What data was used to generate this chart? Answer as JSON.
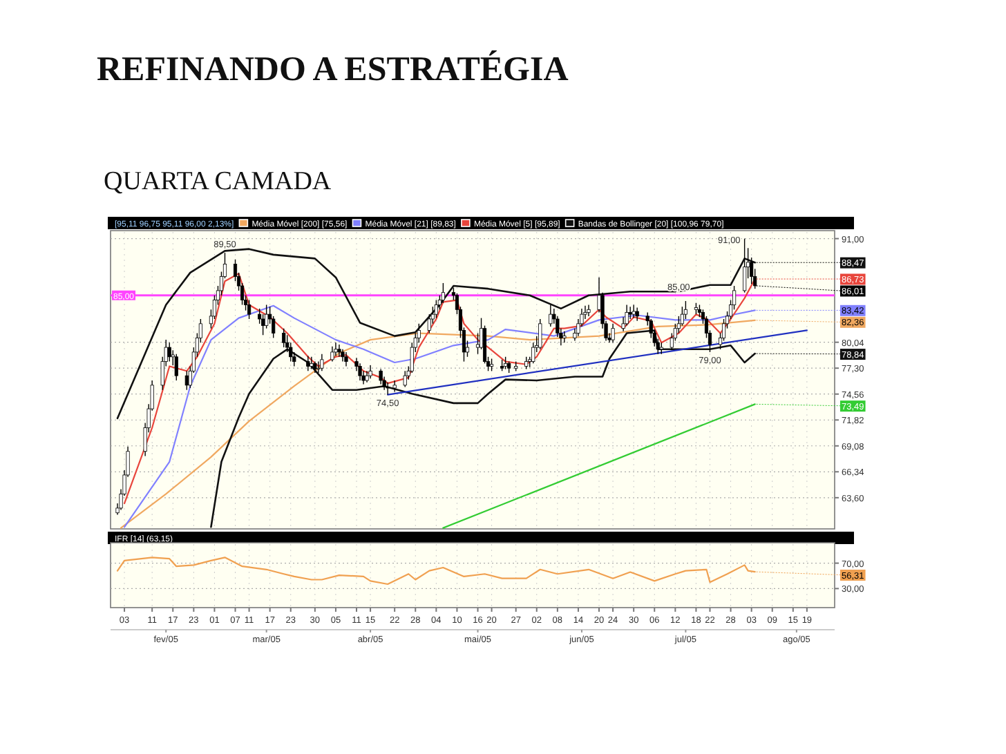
{
  "chart_data": [
    {
      "type": "candlestick",
      "title": "REFINANDO A ESTRATÉGIA",
      "subtitle": "QUARTA CAMADA",
      "x": [
        "--02-01",
        "--02-02",
        "--02-03",
        "--02-04",
        "--02-09",
        "--02-10",
        "--02-11",
        "--02-14",
        "--02-15",
        "--02-16",
        "--02-17",
        "--02-18",
        "--02-21",
        "--02-22",
        "--02-23",
        "--02-24",
        "--02-25",
        "--02-28",
        "--03-01",
        "--03-02",
        "--03-03",
        "--03-04",
        "--03-07",
        "--03-08",
        "--03-09",
        "--03-10",
        "--03-11",
        "--03-14",
        "--03-15",
        "--03-16",
        "--03-17",
        "--03-18",
        "--03-21",
        "--03-22",
        "--03-23",
        "--03-24",
        "--03-28",
        "--03-29",
        "--03-30",
        "--03-31",
        "--04-01",
        "--04-04",
        "--04-05",
        "--04-06",
        "--04-07",
        "--04-08",
        "--04-11",
        "--04-12",
        "--04-13",
        "--04-14",
        "--04-15",
        "--04-18",
        "--04-19",
        "--04-20",
        "--04-22",
        "--04-25",
        "--04-26",
        "--04-27",
        "--04-28",
        "--04-29",
        "--05-02",
        "--05-03",
        "--05-04",
        "--05-05",
        "--05-06",
        "--05-09",
        "--05-10",
        "--05-11",
        "--05-12",
        "--05-13",
        "--05-16",
        "--05-17",
        "--05-18",
        "--05-19",
        "--05-20",
        "--05-23",
        "--05-24",
        "--05-25",
        "--05-27",
        "--05-30",
        "--05-31",
        "--06-01",
        "--06-02",
        "--06-03",
        "--06-06",
        "--06-07",
        "--06-08",
        "--06-09",
        "--06-10",
        "--06-13",
        "--06-14",
        "--06-15",
        "--06-16",
        "--06-17",
        "--06-20",
        "--06-21",
        "--06-22",
        "--06-23",
        "--06-24",
        "--06-27",
        "--06-28",
        "--06-29",
        "--06-30",
        "--07-01",
        "--07-04",
        "--07-05",
        "--07-06",
        "--07-07",
        "--07-08",
        "--07-11",
        "--07-12",
        "--07-13",
        "--07-14",
        "--07-15",
        "--07-18",
        "--07-19",
        "--07-20",
        "--07-21",
        "--07-22",
        "--07-25",
        "--07-26",
        "--07-27",
        "--07-28",
        "--07-29",
        "--08-01",
        "--08-02",
        "--08-03",
        "--08-04"
      ],
      "ohlc": [
        [
          62.0,
          63.0,
          61.8,
          62.5
        ],
        [
          62.5,
          64.5,
          62.3,
          64.0
        ],
        [
          64.0,
          66.5,
          63.8,
          66.0
        ],
        [
          66.0,
          69.0,
          65.8,
          68.5
        ],
        [
          68.5,
          71.5,
          68.0,
          71.0
        ],
        [
          71.0,
          73.5,
          70.5,
          73.0
        ],
        [
          73.0,
          76.0,
          72.8,
          75.5
        ],
        [
          75.5,
          78.5,
          75.0,
          78.0
        ],
        [
          78.0,
          80.3,
          77.5,
          79.5
        ],
        [
          79.5,
          80.0,
          78.0,
          78.5
        ],
        [
          78.5,
          79.2,
          77.6,
          78.7
        ],
        [
          78.5,
          78.8,
          76.0,
          76.5
        ],
        [
          76.5,
          77.0,
          75.0,
          75.5
        ],
        [
          75.5,
          77.5,
          75.2,
          77.0
        ],
        [
          77.0,
          79.5,
          76.8,
          79.0
        ],
        [
          79.0,
          81.0,
          78.5,
          80.5
        ],
        [
          80.5,
          82.5,
          80.0,
          82.0
        ],
        [
          82.0,
          83.5,
          81.5,
          82.8
        ],
        [
          82.8,
          85.0,
          82.5,
          84.5
        ],
        [
          84.5,
          86.0,
          84.0,
          85.5
        ],
        [
          85.5,
          87.5,
          85.0,
          87.0
        ],
        [
          87.0,
          89.5,
          86.8,
          88.3
        ],
        [
          88.3,
          88.8,
          86.5,
          87.0
        ],
        [
          87.0,
          87.4,
          85.5,
          86.0
        ],
        [
          86.0,
          86.3,
          84.0,
          84.5
        ],
        [
          84.5,
          85.0,
          83.4,
          84.0
        ],
        [
          84.0,
          84.5,
          82.5,
          83.0
        ],
        [
          83.0,
          83.6,
          82.0,
          82.5
        ],
        [
          82.5,
          83.0,
          80.8,
          81.8
        ],
        [
          81.8,
          84.0,
          81.5,
          83.0
        ],
        [
          83.0,
          83.8,
          82.0,
          82.5
        ],
        [
          82.5,
          82.8,
          80.5,
          81.0
        ],
        [
          81.0,
          81.5,
          79.5,
          80.0
        ],
        [
          80.0,
          80.8,
          79.0,
          79.5
        ],
        [
          79.5,
          80.0,
          78.0,
          78.5
        ],
        [
          78.5,
          79.0,
          77.5,
          78.0
        ],
        [
          78.0,
          78.6,
          77.0,
          77.5
        ],
        [
          77.5,
          78.5,
          77.2,
          77.8
        ],
        [
          77.8,
          78.0,
          76.8,
          77.2
        ],
        [
          77.2,
          78.0,
          76.8,
          77.3
        ],
        [
          77.3,
          78.8,
          77.0,
          78.2
        ],
        [
          78.2,
          79.6,
          78.0,
          79.0
        ],
        [
          79.0,
          80.0,
          78.6,
          79.3
        ],
        [
          79.3,
          79.8,
          78.5,
          79.0
        ],
        [
          79.0,
          79.3,
          78.0,
          78.5
        ],
        [
          78.5,
          79.0,
          77.5,
          78.0
        ],
        [
          78.0,
          78.4,
          77.0,
          77.5
        ],
        [
          77.5,
          77.8,
          76.0,
          76.5
        ],
        [
          76.5,
          77.0,
          75.6,
          76.0
        ],
        [
          76.0,
          77.0,
          75.8,
          76.5
        ],
        [
          76.5,
          77.6,
          76.2,
          77.0
        ],
        [
          77.0,
          77.2,
          75.6,
          76.0
        ],
        [
          76.0,
          76.4,
          75.0,
          75.3
        ],
        [
          75.3,
          75.8,
          74.5,
          75.2
        ],
        [
          75.2,
          76.0,
          74.8,
          75.5
        ],
        [
          75.5,
          77.0,
          75.3,
          76.5
        ],
        [
          76.5,
          77.5,
          76.1,
          77.0
        ],
        [
          77.0,
          80.0,
          76.8,
          79.5
        ],
        [
          79.5,
          81.0,
          79.0,
          80.5
        ],
        [
          80.5,
          82.0,
          80.0,
          81.3
        ],
        [
          81.3,
          83.0,
          81.0,
          82.5
        ],
        [
          82.5,
          83.8,
          82.0,
          83.0
        ],
        [
          83.0,
          84.5,
          82.6,
          84.0
        ],
        [
          84.0,
          85.0,
          83.5,
          84.5
        ],
        [
          84.5,
          86.3,
          84.2,
          85.3
        ],
        [
          85.3,
          85.8,
          84.5,
          85.0
        ],
        [
          85.0,
          85.2,
          83.0,
          83.5
        ],
        [
          83.5,
          83.8,
          80.5,
          81.3
        ],
        [
          81.3,
          81.6,
          78.0,
          79.0
        ],
        [
          79.0,
          80.2,
          78.5,
          79.5
        ],
        [
          79.5,
          81.0,
          78.8,
          79.8
        ],
        [
          79.5,
          82.6,
          79.3,
          81.5
        ],
        [
          81.5,
          81.8,
          77.8,
          78.0
        ],
        [
          78.0,
          78.5,
          77.0,
          77.5
        ],
        [
          77.5,
          78.3,
          77.0,
          77.7
        ],
        [
          77.5,
          78.2,
          77.0,
          77.3
        ],
        [
          77.5,
          78.5,
          77.2,
          77.8
        ],
        [
          77.8,
          78.0,
          76.8,
          77.3
        ],
        [
          77.3,
          78.0,
          77.0,
          77.5
        ],
        [
          77.5,
          78.5,
          77.2,
          78.0
        ],
        [
          78.0,
          78.5,
          77.4,
          78.2
        ],
        [
          78.0,
          80.0,
          77.8,
          79.5
        ],
        [
          79.5,
          80.7,
          79.0,
          79.7
        ],
        [
          79.5,
          82.5,
          79.3,
          82.0
        ],
        [
          82.0,
          84.0,
          81.7,
          83.0
        ],
        [
          83.0,
          83.6,
          82.0,
          82.5
        ],
        [
          82.5,
          82.8,
          80.6,
          81.0
        ],
        [
          81.0,
          81.5,
          79.7,
          80.5
        ],
        [
          80.5,
          81.2,
          80.0,
          80.7
        ],
        [
          80.5,
          81.5,
          80.2,
          81.0
        ],
        [
          81.0,
          82.5,
          80.7,
          82.0
        ],
        [
          82.0,
          83.6,
          81.7,
          83.0
        ],
        [
          83.0,
          83.9,
          82.5,
          83.2
        ],
        [
          83.2,
          84.0,
          82.8,
          83.5
        ],
        [
          83.5,
          86.9,
          83.2,
          85.0
        ],
        [
          85.0,
          85.3,
          81.5,
          82.0
        ],
        [
          82.0,
          82.3,
          80.2,
          80.5
        ],
        [
          80.5,
          81.0,
          80.0,
          80.3
        ],
        [
          80.3,
          82.0,
          80.0,
          81.5
        ],
        [
          81.5,
          82.7,
          81.2,
          82.0
        ],
        [
          82.0,
          84.0,
          81.8,
          83.2
        ],
        [
          83.2,
          83.8,
          82.5,
          83.0
        ],
        [
          83.0,
          84.0,
          82.6,
          83.3
        ],
        [
          83.3,
          83.7,
          82.3,
          82.8
        ],
        [
          82.8,
          83.2,
          81.8,
          82.3
        ],
        [
          82.3,
          82.5,
          80.5,
          81.0
        ],
        [
          81.0,
          81.3,
          79.6,
          80.0
        ],
        [
          80.0,
          80.4,
          78.8,
          79.3
        ],
        [
          79.3,
          80.0,
          78.8,
          79.5
        ],
        [
          79.5,
          81.0,
          79.2,
          80.5
        ],
        [
          80.5,
          82.0,
          80.2,
          81.5
        ],
        [
          81.5,
          82.8,
          81.0,
          82.0
        ],
        [
          82.0,
          83.8,
          81.8,
          83.0
        ],
        [
          83.0,
          84.4,
          82.5,
          83.5
        ],
        [
          83.5,
          84.2,
          83.0,
          83.7
        ],
        [
          83.5,
          84.0,
          82.7,
          83.2
        ],
        [
          83.2,
          83.5,
          82.0,
          82.5
        ],
        [
          82.5,
          82.8,
          80.5,
          81.0
        ],
        [
          81.0,
          81.3,
          79.0,
          79.8
        ],
        [
          79.8,
          81.0,
          79.3,
          80.5
        ],
        [
          80.5,
          82.5,
          80.2,
          82.0
        ],
        [
          82.0,
          83.3,
          81.5,
          82.8
        ],
        [
          82.8,
          84.5,
          82.5,
          84.0
        ],
        [
          84.0,
          86.0,
          83.5,
          85.5
        ],
        [
          85.5,
          91.0,
          85.3,
          88.0
        ],
        [
          88.0,
          90.0,
          86.8,
          88.5
        ],
        [
          88.5,
          89.0,
          86.2,
          87.0
        ],
        [
          87.0,
          87.8,
          85.7,
          86.01
        ]
      ],
      "series": [
        {
          "type": "line",
          "name": "Média Móvel [200] [75,56]",
          "color": "#f0a860",
          "x": [
            "--02-02",
            "--02-15",
            "--02-28",
            "--03-11",
            "--03-24",
            "--04-06",
            "--04-15",
            "--04-29",
            "--05-19",
            "--05-31",
            "--06-20",
            "--07-07",
            "--07-22",
            "--08-04"
          ],
          "values": [
            60.4,
            64,
            67.9,
            71.7,
            75.4,
            78.9,
            80.3,
            81,
            80.7,
            80.3,
            80.7,
            81.7,
            81.9,
            82.36
          ]
        },
        {
          "type": "line",
          "name": "Média Móvel [21] [89,83]",
          "color": "#8080ff",
          "x": [
            "--02-03",
            "--02-16",
            "--02-22",
            "--02-28",
            "--03-08",
            "--03-18",
            "--03-24",
            "--04-05",
            "--04-13",
            "--04-22",
            "--04-28",
            "--05-09",
            "--05-19",
            "--05-24",
            "--06-07",
            "--06-20",
            "--07-01",
            "--07-12",
            "--07-22",
            "--07-28",
            "--08-04"
          ],
          "values": [
            60.5,
            67.4,
            75.4,
            80.3,
            82.6,
            83.9,
            82.6,
            80.3,
            79.3,
            77.9,
            78.3,
            79.7,
            80.3,
            81.4,
            80.7,
            82.4,
            82.9,
            82.4,
            82.4,
            82.9,
            83.42
          ]
        },
        {
          "type": "line",
          "name": "Média Móvel [5] [95,89]",
          "color": "#e8453c",
          "x": [
            "--02-03",
            "--02-11",
            "--02-16",
            "--02-21",
            "--02-24",
            "--03-01",
            "--03-04",
            "--03-08",
            "--03-11",
            "--03-17",
            "--03-22",
            "--03-28",
            "--03-31",
            "--04-05",
            "--04-08",
            "--04-13",
            "--04-18",
            "--04-20",
            "--04-26",
            "--04-29",
            "--05-04",
            "--05-06",
            "--05-10",
            "--05-12",
            "--05-16",
            "--05-19",
            "--05-24",
            "--05-30",
            "--06-02",
            "--06-07",
            "--06-10",
            "--06-15",
            "--06-20",
            "--06-22",
            "--06-27",
            "--06-30",
            "--07-05",
            "--07-08",
            "--07-13",
            "--07-18",
            "--07-21",
            "--07-25",
            "--07-28",
            "--08-01",
            "--08-04"
          ],
          "values": [
            63,
            71,
            77.5,
            77,
            78.5,
            82,
            86.5,
            87.3,
            84,
            82.7,
            81,
            78.5,
            77.5,
            78.5,
            78.7,
            77,
            76.3,
            75.7,
            76.3,
            79.5,
            82.5,
            84.3,
            84.5,
            82,
            80.3,
            79.5,
            78,
            77.7,
            78.5,
            81.5,
            81.5,
            81.8,
            83.5,
            82.7,
            81.5,
            82.7,
            82.3,
            80,
            81,
            83,
            82.5,
            81,
            82.5,
            84.7,
            86.73
          ]
        },
        {
          "type": "line",
          "name": "Bandas de Bollinger [20] [100,96 79,70]",
          "color": "#111111",
          "x": [
            "--02-01",
            "--02-15",
            "--02-22",
            "--03-04",
            "--03-11",
            "--03-18",
            "--03-30",
            "--04-05",
            "--04-12",
            "--04-22",
            "--04-28",
            "--05-05",
            "--05-09",
            "--05-19",
            "--05-31",
            "--06-09",
            "--06-17",
            "--06-29",
            "--07-13",
            "--07-22",
            "--07-28",
            "--08-01",
            "--08-04"
          ],
          "values": [
            72,
            84,
            87.4,
            89.7,
            89.9,
            89.3,
            88.9,
            86.9,
            82.1,
            80.7,
            81.1,
            84,
            86,
            85.7,
            85,
            83.6,
            85,
            85.4,
            85.4,
            86.1,
            86.1,
            88.9,
            88.47
          ]
        },
        {
          "type": "line",
          "color": "#111111",
          "x": [
            "--02-28",
            "--03-03",
            "--03-08",
            "--03-11",
            "--03-18",
            "--03-22",
            "--03-28",
            "--04-04",
            "--04-11",
            "--04-19",
            "--04-27",
            "--05-09",
            "--05-16",
            "--05-19",
            "--05-24",
            "--06-02",
            "--06-13",
            "--06-21",
            "--06-23",
            "--06-28",
            "--07-06",
            "--07-07",
            "--07-18",
            "--07-22",
            "--07-28",
            "--08-01",
            "--08-04"
          ],
          "values": [
            60.5,
            67.4,
            72.1,
            74.6,
            78.3,
            79.3,
            77.9,
            75,
            75,
            75.4,
            74.6,
            73.6,
            73.6,
            74.6,
            76.1,
            76,
            76.4,
            76.4,
            78.3,
            81,
            81.3,
            79.3,
            79.3,
            79.3,
            79.7,
            77.9,
            78.84
          ]
        },
        {
          "type": "line",
          "color": "#2030c0",
          "x": [
            "--04-20",
            "--08-19"
          ],
          "values": [
            74.5,
            81.3
          ]
        },
        {
          "type": "line",
          "color": "#33cc33",
          "x": [
            "--05-06",
            "--08-04"
          ],
          "values": [
            60.4,
            73.49
          ]
        }
      ],
      "xlim": [
        "--01-30",
        "--08-27"
      ],
      "ylim": [
        60.3,
        91.7
      ],
      "yticks": [
        {
          "value": 63.6,
          "label": "63,60"
        },
        {
          "value": 66.34,
          "label": "66,34"
        },
        {
          "value": 69.08,
          "label": "69,08"
        },
        {
          "value": 71.82,
          "label": "71,82"
        },
        {
          "value": 74.56,
          "label": "74,56"
        },
        {
          "value": 77.3,
          "label": "77,30"
        },
        {
          "value": 80.04,
          "label": "80,04"
        },
        {
          "value": 91,
          "label": "91,00"
        }
      ],
      "xticks": [
        "--02-03",
        "--02-11",
        "--02-17",
        "--02-23",
        "--03-01",
        "--03-07",
        "--03-11",
        "--03-17",
        "--03-23",
        "--03-30",
        "--04-05",
        "--04-11",
        "--04-15",
        "--04-22",
        "--04-28",
        "--05-04",
        "--05-10",
        "--05-16",
        "--05-20",
        "--05-27",
        "--06-02",
        "--06-08",
        "--06-14",
        "--06-20",
        "--06-24",
        "--06-30",
        "--07-06",
        "--07-12",
        "--07-18",
        "--07-22",
        "--07-28",
        "--08-03",
        "--08-09",
        "--08-15",
        "--08-19"
      ],
      "tick_labels": "y",
      "grid": true,
      "legend": "top",
      "ref_lines": [
        {
          "axis": "y",
          "value": 85,
          "label": "85,00",
          "color": "#ff44ff"
        }
      ],
      "annotations": [
        "[95,11 96,75 95,11 96,00 2,13%]",
        {
          "text": "89,50",
          "x": "--03-04",
          "y": 89.5
        },
        {
          "text": "74,50",
          "x": "--04-20",
          "y": 74.5
        },
        {
          "text": "85,00",
          "x": "--07-13",
          "y": 85
        },
        {
          "text": "91,00",
          "x": "--08-01",
          "y": 91
        },
        {
          "text": "79,00",
          "x": "--07-22",
          "y": 79
        },
        {
          "text": "88,47",
          "x": "--08-04",
          "y": 88.47
        },
        {
          "text": "86,73",
          "x": "--08-04",
          "y": 86.73
        },
        {
          "text": "86,01",
          "x": "--08-04",
          "y": 86.01
        },
        {
          "text": "83,42",
          "x": "--08-04",
          "y": 83.42
        },
        {
          "text": "82,36",
          "x": "--08-04",
          "y": 82.36
        },
        {
          "text": "78,84",
          "x": "--08-04",
          "y": 78.84
        },
        {
          "text": "73,49",
          "x": "--08-04",
          "y": 73.49
        }
      ]
    },
    {
      "type": "line",
      "title": "IFR [14] (63,15)",
      "series": [
        {
          "color": "#f0a050",
          "x": [
            "--02-01",
            "--02-03",
            "--02-11",
            "--02-16",
            "--02-18",
            "--02-23",
            "--02-28",
            "--03-04",
            "--03-09",
            "--03-16",
            "--03-21",
            "--03-24",
            "--03-29",
            "--04-01",
            "--04-06",
            "--04-13",
            "--04-15",
            "--04-20",
            "--04-26",
            "--04-28",
            "--05-02",
            "--05-06",
            "--05-12",
            "--05-18",
            "--05-23",
            "--05-30",
            "--06-03",
            "--06-08",
            "--06-17",
            "--06-24",
            "--06-29",
            "--07-06",
            "--07-12",
            "--07-15",
            "--07-21",
            "--07-22",
            "--07-27",
            "--08-01",
            "--08-02",
            "--08-04"
          ],
          "values": [
            58,
            74,
            79,
            77,
            65,
            67,
            74,
            79,
            65,
            60,
            53,
            49,
            44,
            44,
            51,
            49,
            42,
            37,
            53,
            44,
            58,
            63,
            49,
            53,
            46,
            46,
            60,
            53,
            60,
            46,
            56,
            42,
            53,
            58,
            60,
            40,
            53,
            67,
            58,
            56.31
          ]
        }
      ],
      "xlim": [
        "--01-30",
        "--08-27"
      ],
      "ylim": [
        0,
        100
      ],
      "yticks": [
        {
          "value": 70,
          "label": "70,00"
        },
        {
          "value": 30,
          "label": "30,00"
        }
      ],
      "xticks": [
        {
          "value": "--02-03",
          "label": "03"
        },
        {
          "value": "--02-11",
          "label": "11"
        },
        {
          "value": "--02-17",
          "label": "17"
        },
        {
          "value": "--02-23",
          "label": "23"
        },
        {
          "value": "--03-01",
          "label": "01"
        },
        {
          "value": "--03-07",
          "label": "07"
        },
        {
          "value": "--03-11",
          "label": "11"
        },
        {
          "value": "--03-17",
          "label": "17"
        },
        {
          "value": "--03-23",
          "label": "23"
        },
        {
          "value": "--03-30",
          "label": "30"
        },
        {
          "value": "--04-05",
          "label": "05"
        },
        {
          "value": "--04-11",
          "label": "11"
        },
        {
          "value": "--04-15",
          "label": "15"
        },
        {
          "value": "--04-22",
          "label": "22"
        },
        {
          "value": "--04-28",
          "label": "28"
        },
        {
          "value": "--05-04",
          "label": "04"
        },
        {
          "value": "--05-10",
          "label": "10"
        },
        {
          "value": "--05-16",
          "label": "16"
        },
        {
          "value": "--05-20",
          "label": "20"
        },
        {
          "value": "--05-27",
          "label": "27"
        },
        {
          "value": "--06-02",
          "label": "02"
        },
        {
          "value": "--06-08",
          "label": "08"
        },
        {
          "value": "--06-14",
          "label": "14"
        },
        {
          "value": "--06-20",
          "label": "20"
        },
        {
          "value": "--06-24",
          "label": "24"
        },
        {
          "value": "--06-30",
          "label": "30"
        },
        {
          "value": "--07-06",
          "label": "06"
        },
        {
          "value": "--07-12",
          "label": "12"
        },
        {
          "value": "--07-18",
          "label": "18"
        },
        {
          "value": "--07-22",
          "label": "22"
        },
        {
          "value": "--07-28",
          "label": "28"
        },
        {
          "value": "--08-03",
          "label": "03"
        },
        {
          "value": "--08-09",
          "label": "09"
        },
        {
          "value": "--08-15",
          "label": "15"
        },
        {
          "value": "--08-19",
          "label": "19"
        }
      ],
      "x2lim": [
        "2005-01-30",
        "2005-08-27"
      ],
      "x2ticks": [
        {
          "value": "2005-02-15",
          "label": "fev/05"
        },
        {
          "value": "2005-03-16",
          "label": "mar/05"
        },
        {
          "value": "2005-04-15",
          "label": "abr/05"
        },
        {
          "value": "2005-05-16",
          "label": "mai/05"
        },
        {
          "value": "2005-06-15",
          "label": "jun/05"
        },
        {
          "value": "2005-07-15",
          "label": "jul/05"
        },
        {
          "value": "2005-08-16",
          "label": "ago/05"
        }
      ],
      "grid": true,
      "annotations": [
        {
          "text": "56,31",
          "x": "--08-04",
          "y": 56.31
        }
      ]
    }
  ]
}
